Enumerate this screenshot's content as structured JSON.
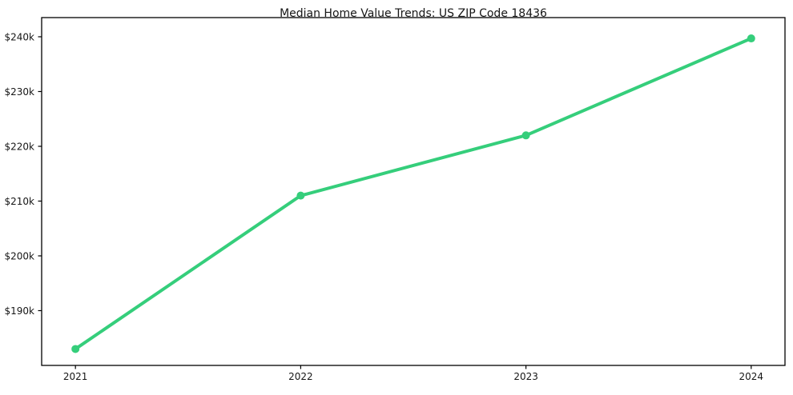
{
  "chart_data": {
    "type": "line",
    "title": "Median Home Value Trends: US ZIP Code 18436",
    "x": [
      2021,
      2022,
      2023,
      2024
    ],
    "x_tick_labels": [
      "2021",
      "2022",
      "2023",
      "2024"
    ],
    "series": [
      {
        "name": "Median Home Value",
        "values": [
          183000,
          211000,
          222000,
          239700
        ]
      }
    ],
    "y_ticks": [
      190000,
      200000,
      210000,
      220000,
      230000,
      240000
    ],
    "y_tick_labels": [
      "$190k",
      "$200k",
      "$210k",
      "$220k",
      "$230k",
      "$240k"
    ],
    "ylim": [
      180000,
      243500
    ],
    "x_margin": 0.05,
    "xlabel": "",
    "ylabel": "",
    "grid": false,
    "legend_position": "none",
    "line_color": "#35ce7b",
    "marker": "circle",
    "marker_color": "#35ce7b",
    "axis_color": "#000000",
    "text_color": "#161616",
    "background_color": "#ffffff"
  }
}
